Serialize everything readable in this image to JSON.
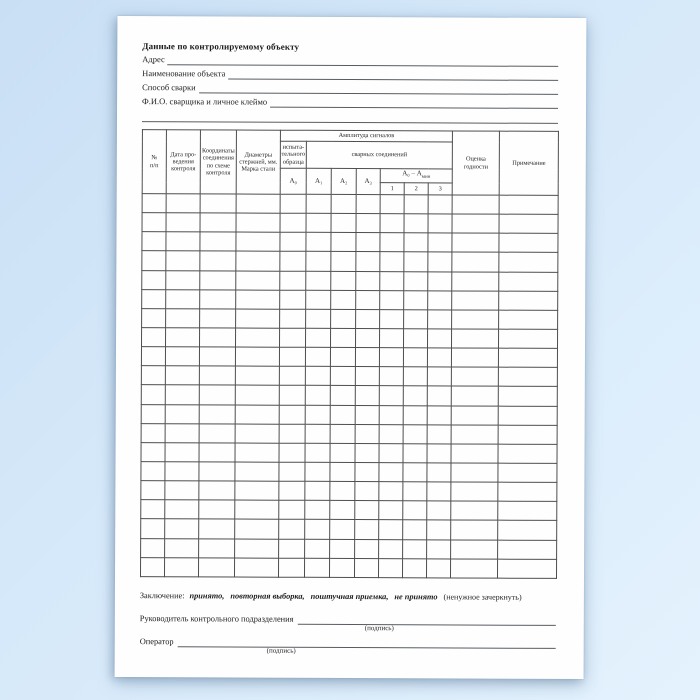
{
  "document": {
    "title": "Данные по контролируемому объекту",
    "fields": [
      {
        "label": "Адрес"
      },
      {
        "label": "Наименование объекта"
      },
      {
        "label": "Способ сварки"
      },
      {
        "label": "Ф.И.О. сварщика и личное клеймо"
      }
    ]
  },
  "table": {
    "headers": {
      "num": "№\nп/п",
      "date": "Дата про-\nведения\nконтроля",
      "coordinates": "Координаты\nсоединения\nпо схеме\nконтроля",
      "diameters": "Диаметры\nстержней, мм.\nМарка стали",
      "amplitude_group": "Амплитуда сигналов",
      "test_sample": "испыта-\nтельного\nобразца",
      "test_sample_col": "А₀",
      "welded_joints": "сварных соединений",
      "welded_cols": [
        "А₁",
        "А₂",
        "А₃"
      ],
      "diff_base": "А₀ – А",
      "diff_sub": "мин",
      "diff_cols": [
        "1",
        "2",
        "3"
      ],
      "fitness": "Оценка\nгодности",
      "note": "Примечание"
    },
    "body_rows": 20,
    "body_cols": 13
  },
  "footer": {
    "conclusion_label": "Заключение:",
    "options": [
      "принято,",
      "повторная выборка,",
      "поштучная приемка,",
      "не принято"
    ],
    "options_note": "(ненужное зачеркнуть)",
    "signature1_label": "Руководитель контрольного подразделения",
    "signature1_sub": "(подпись)",
    "signature2_label": "Оператор",
    "signature2_sub": "(подпись)"
  }
}
